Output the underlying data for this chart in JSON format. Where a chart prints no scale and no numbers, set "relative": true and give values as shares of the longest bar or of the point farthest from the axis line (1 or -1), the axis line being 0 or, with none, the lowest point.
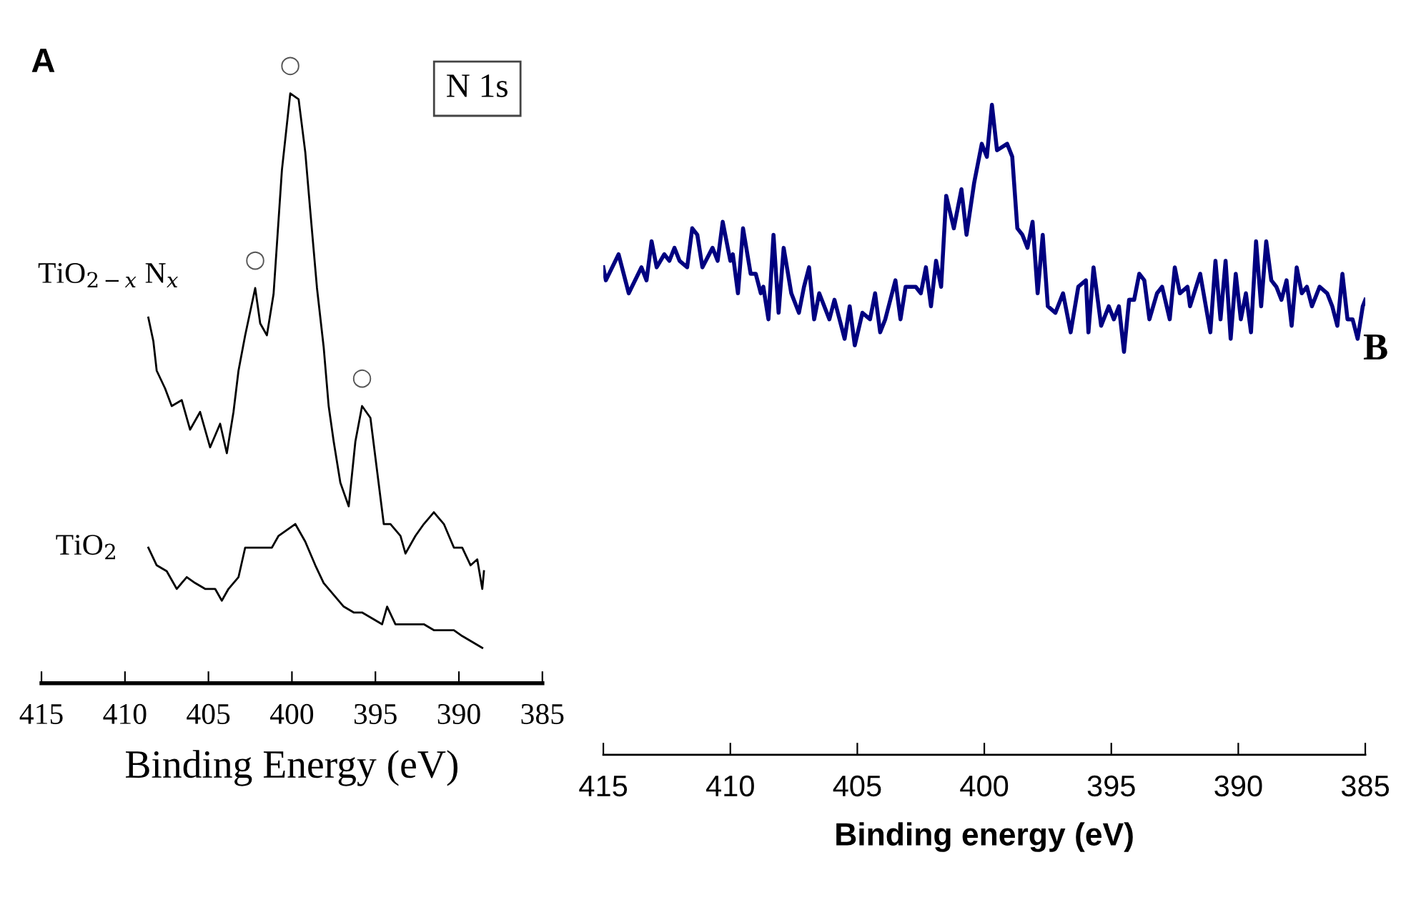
{
  "chart_data": [
    {
      "type": "line",
      "relative": true,
      "xlabel": "Binding Energy (eV)",
      "xlim": [
        415,
        385
      ],
      "xticks": [
        415,
        410,
        405,
        400,
        395,
        390,
        385
      ],
      "tick_labels": "x",
      "annotations": [
        "A",
        "N 1s",
        {
          "text": "○",
          "x": 400.1,
          "y": 1.0
        },
        {
          "text": "○",
          "x": 402.2,
          "y": 0.67
        },
        {
          "text": "○",
          "x": 395.8,
          "y": 0.47
        }
      ],
      "series": [
        {
          "name": "TiO$_{2−x}$ N$_{x}$",
          "color": "#000000",
          "x": [
            408.6,
            408.3,
            408.1,
            407.6,
            407.2,
            406.6,
            406.1,
            405.5,
            404.9,
            404.3,
            403.9,
            403.5,
            403.2,
            402.8,
            402.2,
            401.9,
            401.5,
            401.1,
            400.6,
            400.1,
            399.6,
            399.2,
            398.9,
            398.5,
            398.1,
            397.8,
            397.5,
            397.1,
            396.6,
            396.2,
            395.8,
            395.3,
            394.9,
            394.5,
            394.1,
            393.5,
            393.2,
            392.6,
            392.1,
            391.5,
            390.9,
            390.3,
            389.8,
            389.3,
            388.9,
            388.6,
            388.5
          ],
          "values": [
            0.62,
            0.58,
            0.53,
            0.5,
            0.47,
            0.48,
            0.43,
            0.46,
            0.4,
            0.44,
            0.39,
            0.46,
            0.53,
            0.59,
            0.67,
            0.61,
            0.59,
            0.66,
            0.87,
            1.0,
            0.99,
            0.9,
            0.8,
            0.67,
            0.57,
            0.47,
            0.41,
            0.34,
            0.3,
            0.41,
            0.47,
            0.45,
            0.36,
            0.27,
            0.27,
            0.25,
            0.22,
            0.25,
            0.27,
            0.29,
            0.27,
            0.23,
            0.23,
            0.2,
            0.21,
            0.16,
            0.19
          ]
        },
        {
          "name": "TiO$_{2}$",
          "color": "#000000",
          "x": [
            408.6,
            408.1,
            407.5,
            406.9,
            406.3,
            405.8,
            405.2,
            404.6,
            404.2,
            403.8,
            403.2,
            402.8,
            402.3,
            401.8,
            401.2,
            400.8,
            400.3,
            399.8,
            399.2,
            398.6,
            398.1,
            397.5,
            396.9,
            396.3,
            395.8,
            395.2,
            394.6,
            394.3,
            393.8,
            393.2,
            392.6,
            392.1,
            391.5,
            390.9,
            390.3,
            389.8,
            389.2,
            388.6
          ],
          "values": [
            0.23,
            0.2,
            0.19,
            0.16,
            0.18,
            0.17,
            0.16,
            0.16,
            0.14,
            0.16,
            0.18,
            0.23,
            0.23,
            0.23,
            0.23,
            0.25,
            0.26,
            0.27,
            0.24,
            0.2,
            0.17,
            0.15,
            0.13,
            0.12,
            0.12,
            0.11,
            0.1,
            0.13,
            0.1,
            0.1,
            0.1,
            0.1,
            0.09,
            0.09,
            0.09,
            0.08,
            0.07,
            0.06
          ]
        }
      ]
    },
    {
      "type": "line",
      "relative": true,
      "xlabel": "Binding energy (eV)",
      "xlim": [
        415,
        385
      ],
      "xticks": [
        415,
        410,
        405,
        400,
        395,
        390,
        385
      ],
      "tick_labels": "x",
      "annotations": [
        "B"
      ],
      "series": [
        {
          "color": "#000080",
          "x": [
            415.0,
            414.9,
            414.4,
            414.0,
            413.5,
            413.3,
            413.1,
            412.9,
            412.6,
            412.4,
            412.2,
            412.0,
            411.7,
            411.5,
            411.3,
            411.1,
            410.7,
            410.5,
            410.3,
            410.0,
            409.9,
            409.7,
            409.5,
            409.2,
            409.0,
            408.8,
            408.7,
            408.5,
            408.3,
            408.1,
            407.9,
            407.6,
            407.3,
            407.1,
            406.9,
            406.7,
            406.5,
            406.1,
            405.9,
            405.5,
            405.3,
            405.1,
            404.8,
            404.5,
            404.3,
            404.1,
            403.9,
            403.5,
            403.3,
            403.1,
            402.7,
            402.5,
            402.3,
            402.1,
            401.9,
            401.7,
            401.5,
            401.2,
            400.9,
            400.7,
            400.4,
            400.1,
            399.9,
            399.7,
            399.5,
            399.1,
            398.9,
            398.7,
            398.5,
            398.3,
            398.1,
            397.9,
            397.7,
            397.5,
            397.2,
            396.9,
            396.6,
            396.3,
            396.0,
            395.9,
            395.7,
            395.4,
            395.1,
            394.9,
            394.7,
            394.5,
            394.3,
            394.1,
            393.9,
            393.7,
            393.5,
            393.2,
            393.0,
            392.7,
            392.5,
            392.3,
            392.0,
            391.9,
            391.5,
            391.1,
            390.9,
            390.7,
            390.5,
            390.3,
            390.1,
            389.9,
            389.7,
            389.5,
            389.3,
            389.1,
            388.9,
            388.7,
            388.5,
            388.3,
            388.1,
            387.9,
            387.7,
            387.5,
            387.3,
            387.1,
            386.8,
            386.5,
            386.3,
            386.1,
            385.9,
            385.7,
            385.5,
            385.3,
            385.1,
            385.0
          ],
          "values": [
            0.75,
            0.73,
            0.77,
            0.71,
            0.75,
            0.73,
            0.79,
            0.75,
            0.77,
            0.76,
            0.78,
            0.76,
            0.75,
            0.81,
            0.8,
            0.75,
            0.78,
            0.76,
            0.82,
            0.76,
            0.77,
            0.71,
            0.81,
            0.74,
            0.74,
            0.71,
            0.72,
            0.67,
            0.8,
            0.68,
            0.78,
            0.71,
            0.68,
            0.72,
            0.75,
            0.67,
            0.71,
            0.67,
            0.7,
            0.64,
            0.69,
            0.63,
            0.68,
            0.67,
            0.71,
            0.65,
            0.67,
            0.73,
            0.67,
            0.72,
            0.72,
            0.71,
            0.75,
            0.69,
            0.76,
            0.72,
            0.86,
            0.81,
            0.87,
            0.8,
            0.88,
            0.94,
            0.92,
            1.0,
            0.93,
            0.94,
            0.92,
            0.81,
            0.8,
            0.78,
            0.82,
            0.71,
            0.8,
            0.69,
            0.68,
            0.71,
            0.65,
            0.72,
            0.73,
            0.65,
            0.75,
            0.66,
            0.69,
            0.67,
            0.69,
            0.62,
            0.7,
            0.7,
            0.74,
            0.73,
            0.67,
            0.71,
            0.72,
            0.67,
            0.75,
            0.71,
            0.72,
            0.69,
            0.74,
            0.65,
            0.76,
            0.67,
            0.76,
            0.64,
            0.74,
            0.67,
            0.71,
            0.65,
            0.79,
            0.69,
            0.79,
            0.73,
            0.72,
            0.7,
            0.73,
            0.66,
            0.75,
            0.71,
            0.72,
            0.69,
            0.72,
            0.71,
            0.69,
            0.66,
            0.74,
            0.67,
            0.67,
            0.64,
            0.69,
            0.7
          ]
        }
      ]
    }
  ]
}
